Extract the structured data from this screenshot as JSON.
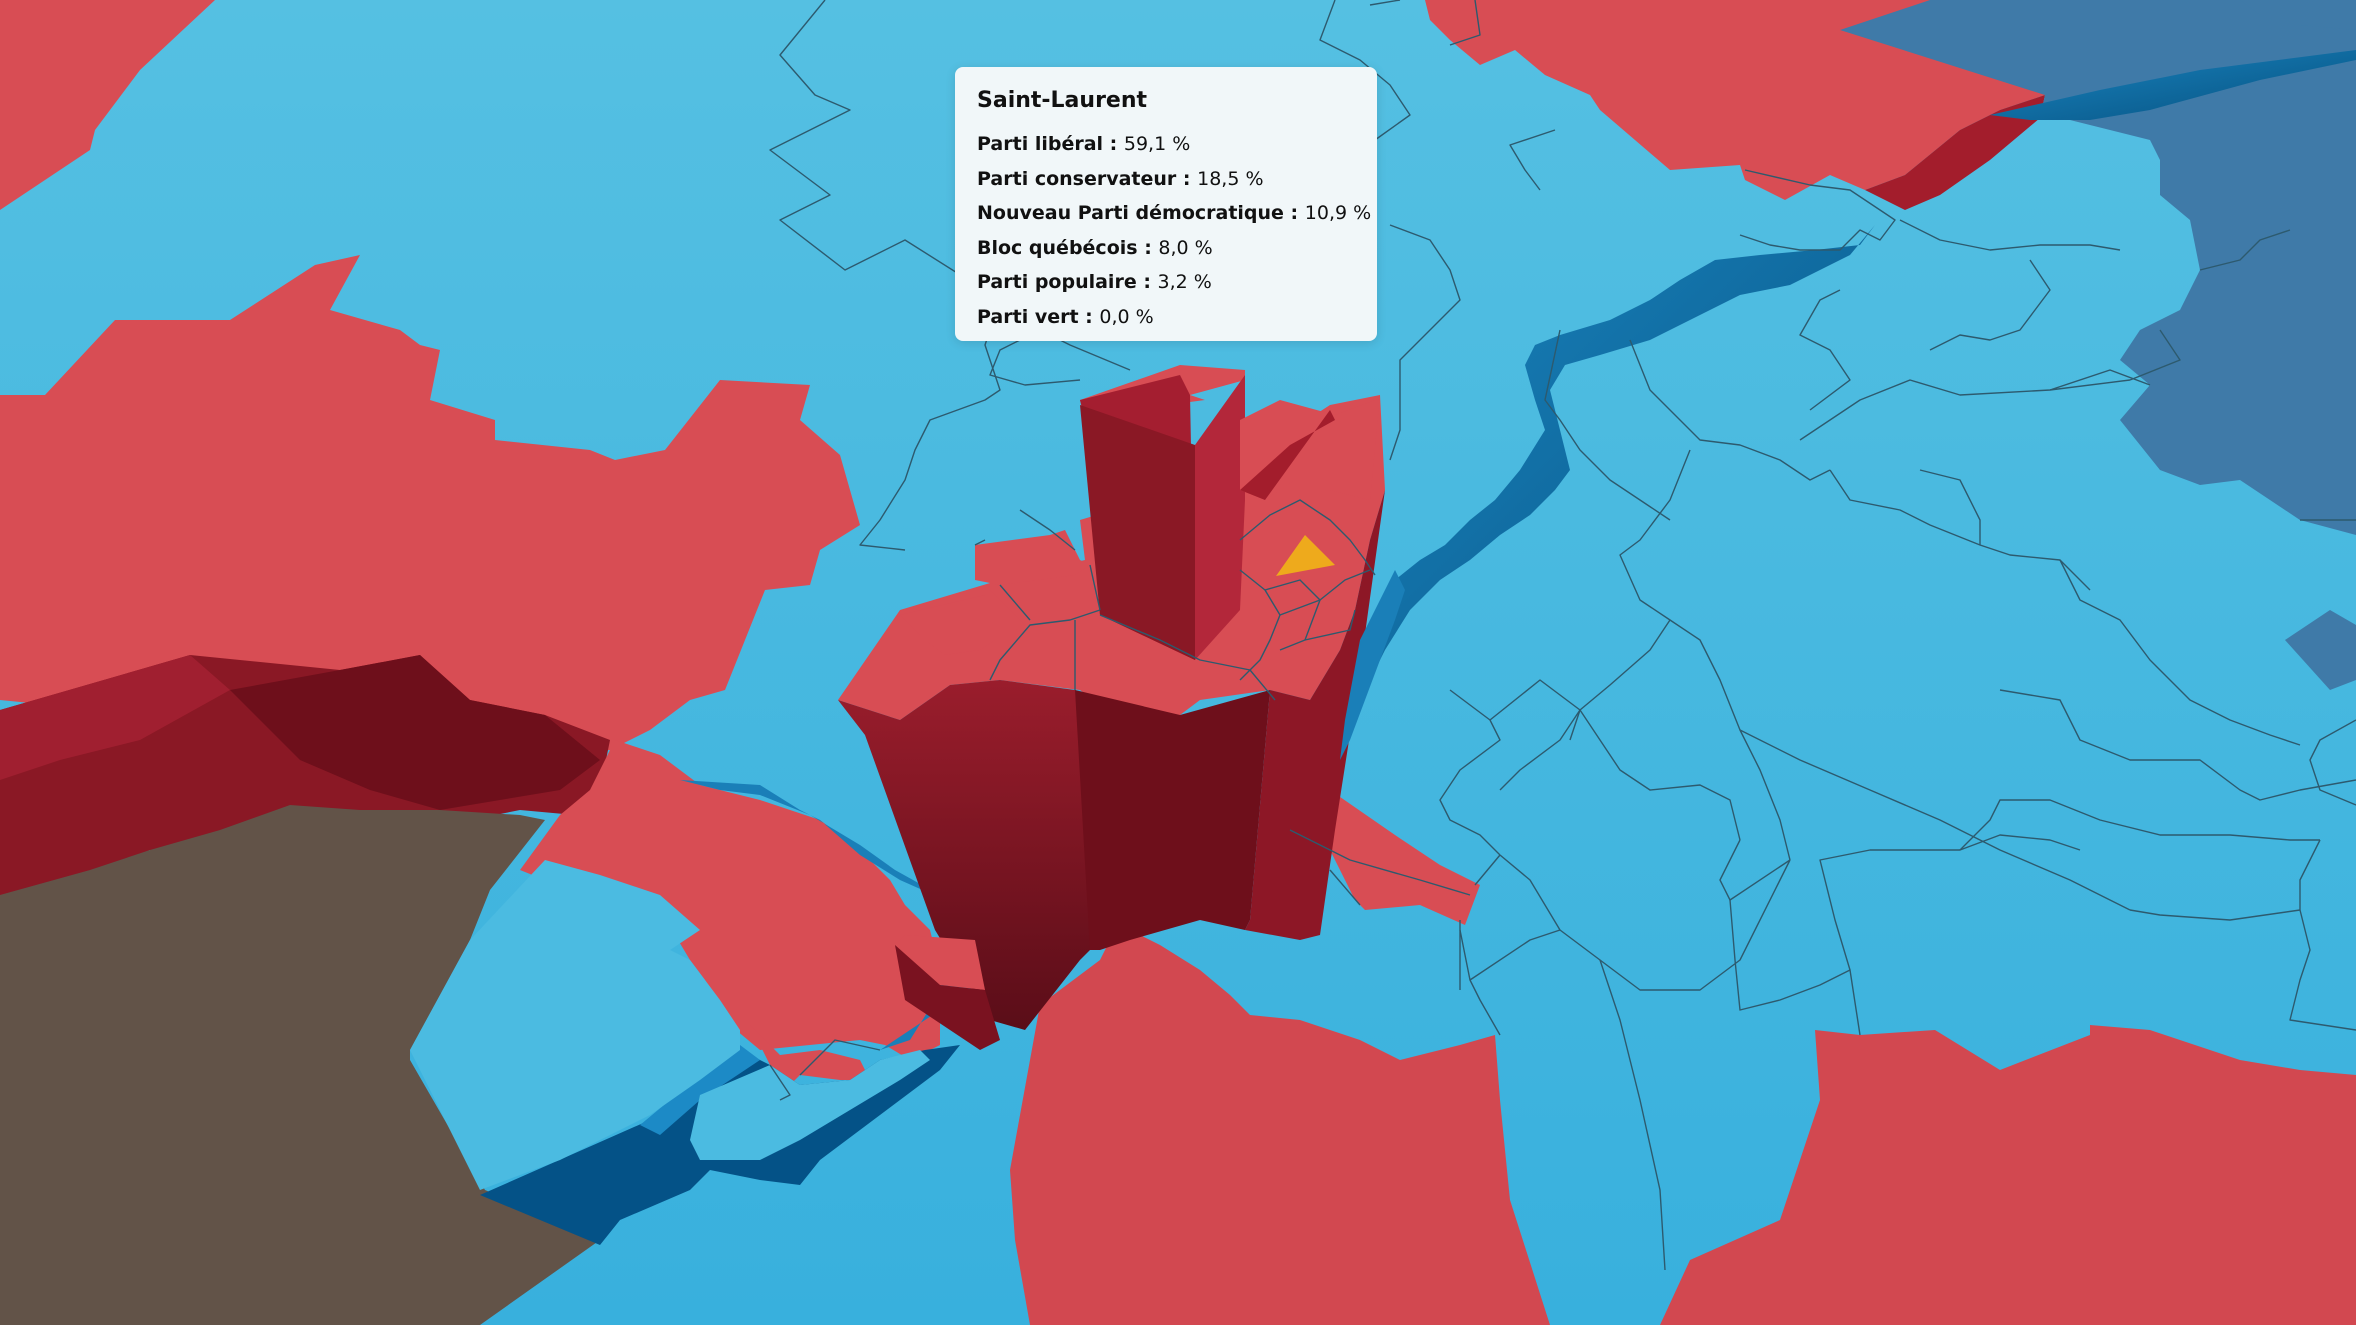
{
  "riding": {
    "name": "Saint-Laurent",
    "results": [
      {
        "party": "Parti libéral",
        "separator": " : ",
        "value": "59,1 %"
      },
      {
        "party": "Parti conservateur",
        "separator": " : ",
        "value": "18,5 %"
      },
      {
        "party": "Nouveau Parti démocratique",
        "separator": " : ",
        "value": "10,9 %"
      },
      {
        "party": "Bloc québécois",
        "separator": " : ",
        "value": "8,0 %"
      },
      {
        "party": "Parti populaire",
        "separator": " : ",
        "value": "3,2 %"
      },
      {
        "party": "Parti vert",
        "separator": " : ",
        "value": "0,0 %"
      }
    ]
  },
  "legend_colors": {
    "liberal": "#d84d54",
    "liberal_extruded_side": "#8a1825",
    "bloc_quebecois": "#4cbbe0",
    "bloc_quebecois_river": "#1a7fb8",
    "conservative": "#3f7aa8",
    "ndp": "#eeaa1c",
    "neutral_land": "#625348"
  }
}
